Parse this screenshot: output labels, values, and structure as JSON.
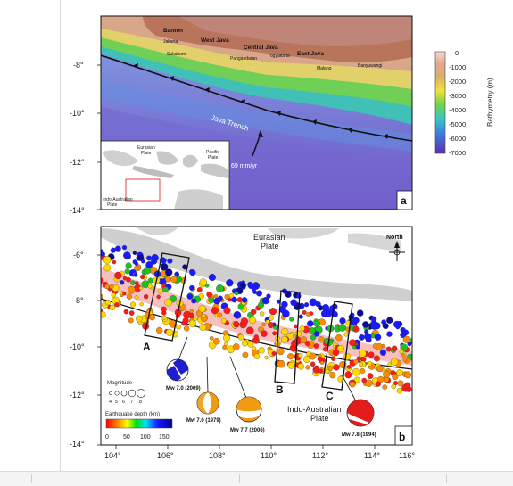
{
  "figure": {
    "panel_a": {
      "label": "a",
      "places": [
        "Banten",
        "Jakarta",
        "West Java",
        "Central Java",
        "Yogyakarta",
        "East Java",
        "Banyuwangi",
        "Pangandaran",
        "Sukabumi",
        "Malang"
      ],
      "trench_label": "Java Trench",
      "velocity_label": "69 mm/yr",
      "inset_labels": {
        "eurasian": "Eurasian\nPlate",
        "pacific": "Pacific\nPlate",
        "indo": "Indo-Australian\nPlate"
      },
      "y_ticks": [
        "-8°",
        "-10°",
        "-12°",
        "-14°"
      ],
      "colorbar": {
        "title": "Bathymetry (m)",
        "ticks": [
          "0",
          "-1000",
          "-2000",
          "-3000",
          "-4000",
          "-5000",
          "-6000",
          "-7000"
        ]
      }
    },
    "panel_b": {
      "label": "b",
      "plate_top": "Eurasian\nPlate",
      "plate_bottom": "Indo-Australian\nPlate",
      "north": "North",
      "boxes": [
        "A",
        "B",
        "C"
      ],
      "y_ticks": [
        "-6°",
        "-8°",
        "-10°",
        "-12°",
        "-14°"
      ],
      "x_ticks": [
        "104°",
        "106°",
        "108°",
        "110°",
        "112°",
        "114°",
        "116°"
      ],
      "magnitude_legend": {
        "title": "Magnitude",
        "values": [
          "4",
          "5",
          "6",
          "7",
          "8"
        ]
      },
      "depth_legend": {
        "title": "Earthquake depth (km)",
        "ticks": [
          "0",
          "50",
          "100",
          "150"
        ]
      },
      "events": [
        {
          "label": "Mw 7.0 (2009)",
          "color": "#1f1fd0"
        },
        {
          "label": "Mw 7.0 (1979)",
          "color": "#f29a12"
        },
        {
          "label": "Mw 7.7 (2006)",
          "color": "#f29a12"
        },
        {
          "label": "Mw 7.8 (1994)",
          "color": "#e31b1b"
        }
      ]
    }
  }
}
